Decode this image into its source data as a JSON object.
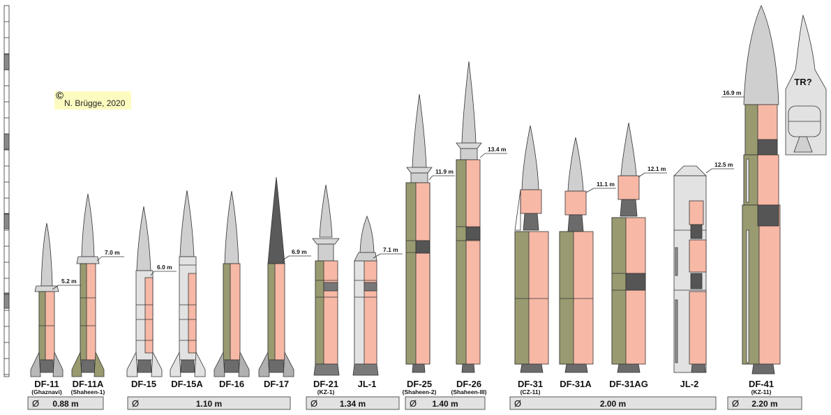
{
  "copyright": {
    "symbol": "©",
    "text": "N. Brügge, 2020"
  },
  "diameter_symbol": "Ø",
  "colors": {
    "olive": "#999a70",
    "salmon": "#f7b8a6",
    "grey": "#cfcfcf",
    "dark": "#6b6b6b",
    "panel": "#e2e2e2"
  },
  "missiles": [
    {
      "name": "DF-11",
      "sub": "(Ghaznavi)",
      "length": "5.2 m"
    },
    {
      "name": "DF-11A",
      "sub": "(Shaheen-1)",
      "length": "7.0 m"
    },
    {
      "name": "DF-15",
      "sub": "",
      "length": "6.0 m"
    },
    {
      "name": "DF-15A",
      "sub": "",
      "length": ""
    },
    {
      "name": "DF-16",
      "sub": "",
      "length": ""
    },
    {
      "name": "DF-17",
      "sub": "",
      "length": "6.9 m"
    },
    {
      "name": "DF-21",
      "sub": "(KZ-1)",
      "length": ""
    },
    {
      "name": "JL-1",
      "sub": "",
      "length": "7.1 m"
    },
    {
      "name": "DF-25",
      "sub": "(Shaheen-2)",
      "length": "11.9 m"
    },
    {
      "name": "DF-26",
      "sub": "(Shaheen-III)",
      "length": "13.4 m"
    },
    {
      "name": "DF-31",
      "sub": "(CZ-11)",
      "length": ""
    },
    {
      "name": "DF-31A",
      "sub": "",
      "length": "11.1 m"
    },
    {
      "name": "DF-31AG",
      "sub": "",
      "length": "12.1 m"
    },
    {
      "name": "JL-2",
      "sub": "",
      "length": "12.5 m"
    },
    {
      "name": "DF-41",
      "sub": "(KZ-11)",
      "length": "16.9 m"
    },
    {
      "name": "TR?",
      "sub": "",
      "length": ""
    }
  ],
  "diameters": [
    {
      "value": "0.88 m"
    },
    {
      "value": "1.10 m"
    },
    {
      "value": "1.34 m"
    },
    {
      "value": "1.40 m"
    },
    {
      "value": "2.00 m"
    },
    {
      "value": "2.20 m"
    }
  ]
}
